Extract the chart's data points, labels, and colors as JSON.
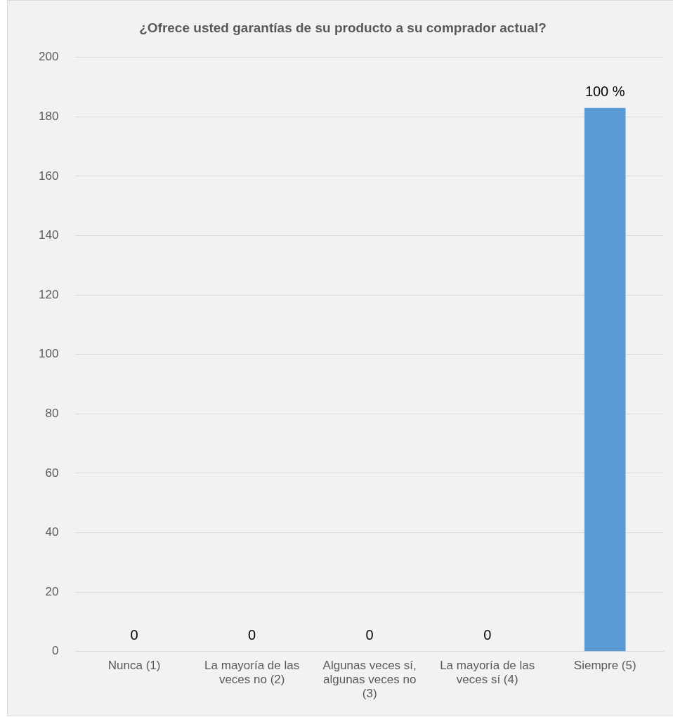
{
  "chart_data": {
    "type": "bar",
    "title": "¿Ofrece usted garantías de su producto a su comprador actual?",
    "categories": [
      "Nunca (1)",
      "La mayoría de las veces no (2)",
      "Algunas veces sí, algunas veces no (3)",
      "La mayoría de las veces sí (4)",
      "Siempre (5)"
    ],
    "values": [
      0,
      0,
      0,
      0,
      183
    ],
    "color": "#5b9bd5",
    "annotations": [
      {
        "text": "0",
        "x": "Nunca (1)",
        "y": 0
      },
      {
        "text": "0",
        "x": "La mayoría de las veces no (2)",
        "y": 0
      },
      {
        "text": "0",
        "x": "Algunas veces sí, algunas veces no (3)",
        "y": 0
      },
      {
        "text": "0",
        "x": "La mayoría de las veces sí (4)",
        "y": 0
      },
      {
        "text": "100 %",
        "x": "Siempre (5)",
        "y": 183
      }
    ],
    "ylim": [
      0,
      200
    ],
    "yticks": [
      0,
      20,
      40,
      60,
      80,
      100,
      120,
      140,
      160,
      180,
      200
    ],
    "grid": "y",
    "legend": false
  }
}
